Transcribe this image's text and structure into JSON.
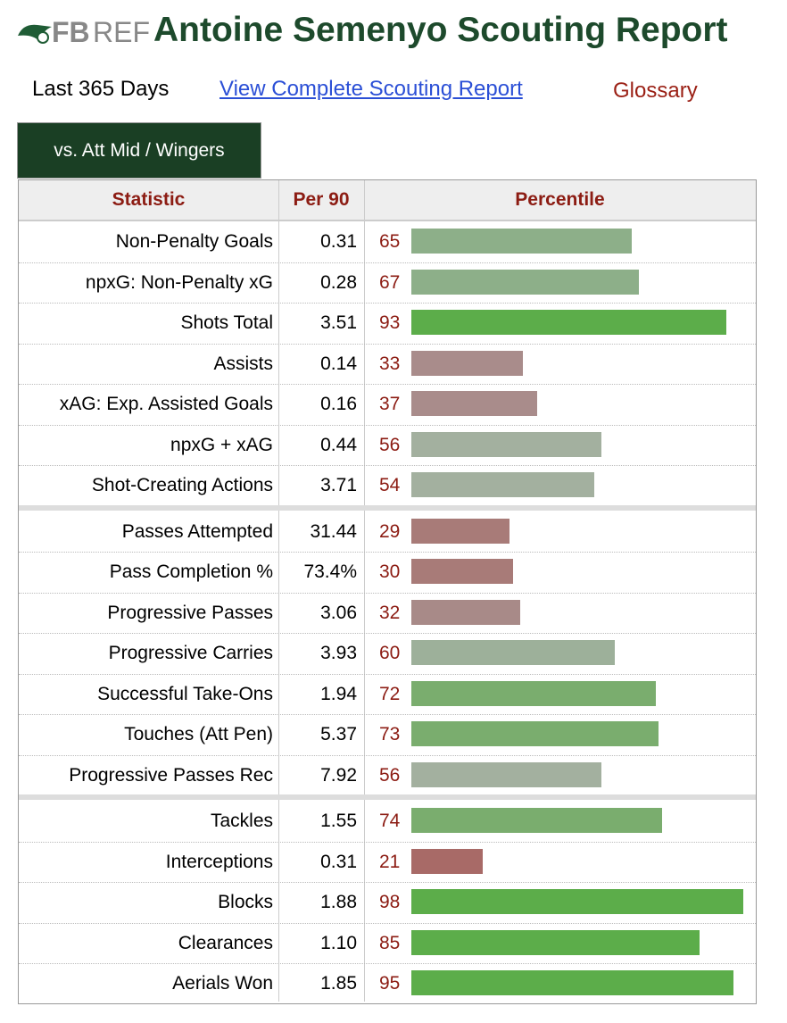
{
  "header": {
    "logo": {
      "bold": "FB",
      "light": "REF"
    },
    "title": "Antoine Semenyo Scouting Report"
  },
  "nav": {
    "period": "Last 365 Days",
    "link": "View Complete Scouting Report",
    "glossary": "Glossary"
  },
  "tab": "vs. Att Mid / Wingers",
  "table": {
    "columns": [
      "Statistic",
      "Per 90",
      "Percentile"
    ],
    "groups": [
      [
        {
          "statistic": "Non-Penalty Goals",
          "per90": "0.31",
          "percentile": 65,
          "color": "#8daf89"
        },
        {
          "statistic": "npxG: Non-Penalty xG",
          "per90": "0.28",
          "percentile": 67,
          "color": "#8daf89"
        },
        {
          "statistic": "Shots Total",
          "per90": "3.51",
          "percentile": 93,
          "color": "#5cad4a"
        },
        {
          "statistic": "Assists",
          "per90": "0.14",
          "percentile": 33,
          "color": "#a98c8b"
        },
        {
          "statistic": "xAG: Exp. Assisted Goals",
          "per90": "0.16",
          "percentile": 37,
          "color": "#a98c8b"
        },
        {
          "statistic": "npxG + xAG",
          "per90": "0.44",
          "percentile": 56,
          "color": "#a3b09f"
        },
        {
          "statistic": "Shot-Creating Actions",
          "per90": "3.71",
          "percentile": 54,
          "color": "#a3b09f"
        }
      ],
      [
        {
          "statistic": "Passes Attempted",
          "per90": "31.44",
          "percentile": 29,
          "color": "#a87b78"
        },
        {
          "statistic": "Pass Completion %",
          "per90": "73.4%",
          "percentile": 30,
          "color": "#a87b78"
        },
        {
          "statistic": "Progressive Passes",
          "per90": "3.06",
          "percentile": 32,
          "color": "#a88a88"
        },
        {
          "statistic": "Progressive Carries",
          "per90": "3.93",
          "percentile": 60,
          "color": "#9db09a"
        },
        {
          "statistic": "Successful Take-Ons",
          "per90": "1.94",
          "percentile": 72,
          "color": "#7aad6e"
        },
        {
          "statistic": "Touches (Att Pen)",
          "per90": "5.37",
          "percentile": 73,
          "color": "#7aad6e"
        },
        {
          "statistic": "Progressive Passes Rec",
          "per90": "7.92",
          "percentile": 56,
          "color": "#a3b09f"
        }
      ],
      [
        {
          "statistic": "Tackles",
          "per90": "1.55",
          "percentile": 74,
          "color": "#7aad6e"
        },
        {
          "statistic": "Interceptions",
          "per90": "0.31",
          "percentile": 21,
          "color": "#a86a67"
        },
        {
          "statistic": "Blocks",
          "per90": "1.88",
          "percentile": 98,
          "color": "#5cad4a"
        },
        {
          "statistic": "Clearances",
          "per90": "1.10",
          "percentile": 85,
          "color": "#5cad4a"
        },
        {
          "statistic": "Aerials Won",
          "per90": "1.85",
          "percentile": 95,
          "color": "#5cad4a"
        }
      ]
    ]
  }
}
